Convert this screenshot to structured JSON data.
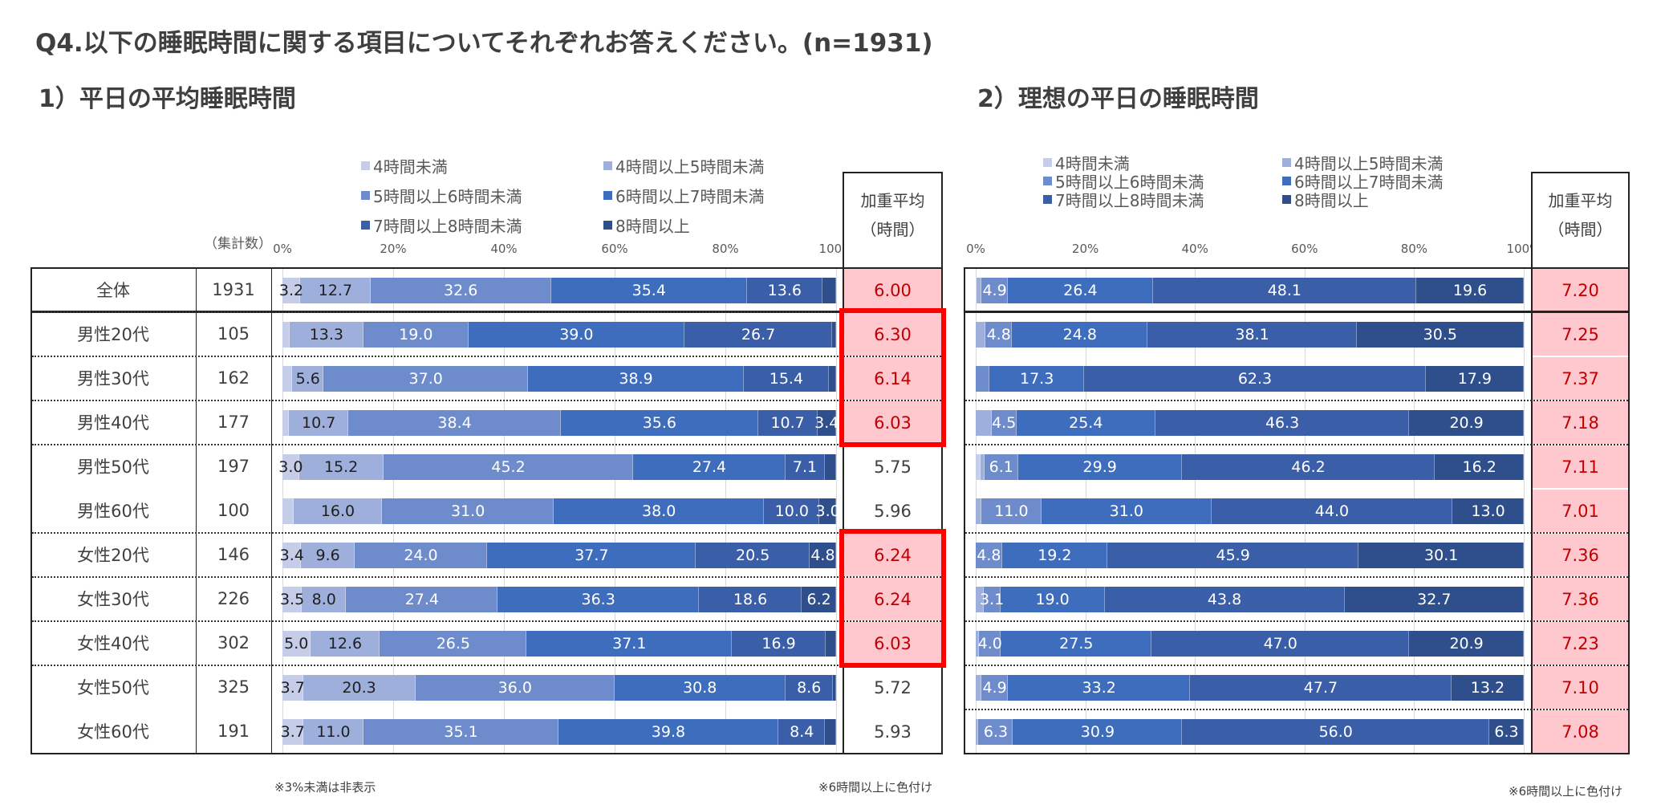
{
  "question_title": "Q4.以下の睡眠時間に関する項目についてそれぞれお答えください。(n=1931)",
  "colors": {
    "series": [
      "#c5cde8",
      "#9fafdc",
      "#6e8ccc",
      "#3f6dbd",
      "#3a5ea8",
      "#2f4f8c"
    ],
    "highlight_bg": "#ffc7ce",
    "highlight_text": "#c00000",
    "highlight_border": "#ff0000"
  },
  "chart_data": [
    {
      "type": "bar",
      "orientation": "horizontal-stacked-100",
      "title": "1）平日の平均睡眠時間",
      "count_header": "（集計数）",
      "weighted_header_line1": "加重平均",
      "weighted_header_line2": "（時間）",
      "x_ticks": [
        "0%",
        "20%",
        "40%",
        "60%",
        "80%",
        "100%"
      ],
      "xlim": [
        0,
        100
      ],
      "grid": true,
      "legend_position": "top",
      "legend": [
        "4時間未満",
        "4時間以上5時間未満",
        "5時間以上6時間未満",
        "6時間以上7時間未満",
        "7時間以上8時間未満",
        "8時間以上"
      ],
      "categories": [
        "全体",
        "男性20代",
        "男性30代",
        "男性40代",
        "男性50代",
        "男性60代",
        "女性20代",
        "女性30代",
        "女性40代",
        "女性50代",
        "女性60代"
      ],
      "counts": [
        "1931",
        "105",
        "162",
        "177",
        "197",
        "100",
        "146",
        "226",
        "302",
        "325",
        "191"
      ],
      "series": [
        {
          "name": "4時間未満",
          "values": [
            3.2,
            1.3,
            1.8,
            1.2,
            3.0,
            2.0,
            3.4,
            3.5,
            5.0,
            3.7,
            3.7
          ]
        },
        {
          "name": "4時間以上5時間未満",
          "values": [
            12.7,
            13.3,
            5.6,
            10.7,
            15.2,
            16.0,
            9.6,
            8.0,
            12.6,
            20.3,
            11.0
          ]
        },
        {
          "name": "5時間以上6時間未満",
          "values": [
            32.6,
            19.0,
            37.0,
            38.4,
            45.2,
            31.0,
            24.0,
            27.4,
            26.5,
            36.0,
            35.1
          ]
        },
        {
          "name": "6時間以上7時間未満",
          "values": [
            35.4,
            39.0,
            38.9,
            35.6,
            27.4,
            38.0,
            37.7,
            36.3,
            37.1,
            30.8,
            39.8
          ]
        },
        {
          "name": "7時間以上8時間未満",
          "values": [
            13.6,
            26.7,
            15.4,
            10.7,
            7.1,
            10.0,
            20.5,
            18.6,
            16.9,
            8.6,
            8.4
          ]
        },
        {
          "name": "8時間以上",
          "values": [
            2.5,
            0.7,
            1.3,
            3.4,
            2.1,
            3.0,
            4.8,
            6.2,
            1.9,
            0.6,
            2.0
          ]
        }
      ],
      "weighted_avg": [
        "6.00",
        "6.30",
        "6.14",
        "6.03",
        "5.75",
        "5.96",
        "6.24",
        "6.24",
        "6.03",
        "5.72",
        "5.93"
      ],
      "highlighted": [
        true,
        true,
        true,
        true,
        false,
        false,
        true,
        true,
        true,
        false,
        false
      ],
      "red_boxed_groups": [
        [
          1,
          3
        ],
        [
          6,
          8
        ]
      ],
      "dotted_separators_after": [
        1,
        2,
        3,
        4,
        6,
        7,
        8,
        9
      ],
      "label_threshold": 3,
      "note_left": "※3%未満は非表示",
      "note_right": "※6時間以上に色付け"
    },
    {
      "type": "bar",
      "orientation": "horizontal-stacked-100",
      "title": "2）理想の平日の睡眠時間",
      "weighted_header_line1": "加重平均",
      "weighted_header_line2": "（時間）",
      "x_ticks": [
        "0%",
        "20%",
        "40%",
        "60%",
        "80%",
        "100%"
      ],
      "xlim": [
        0,
        100
      ],
      "grid": true,
      "legend_position": "top",
      "legend": [
        "4時間未満",
        "4時間以上5時間未満",
        "5時間以上6時間未満",
        "6時間以上7時間未満",
        "7時間以上8時間未満",
        "8時間以上"
      ],
      "categories": [
        "全体",
        "男性20代",
        "男性30代",
        "男性40代",
        "男性50代",
        "男性60代",
        "女性20代",
        "女性30代",
        "女性40代",
        "女性50代",
        "女性60代"
      ],
      "series": [
        {
          "name": "4時間未満",
          "values": [
            0.2,
            0.0,
            0.0,
            0.0,
            0.9,
            0.0,
            0.0,
            0.0,
            0.0,
            0.0,
            0.0
          ]
        },
        {
          "name": "4時間以上5時間未満",
          "values": [
            0.8,
            1.8,
            0.0,
            2.9,
            0.7,
            1.0,
            0.0,
            1.4,
            0.6,
            1.0,
            0.5
          ]
        },
        {
          "name": "5時間以上6時間未満",
          "values": [
            4.9,
            4.8,
            2.5,
            4.5,
            6.1,
            11.0,
            4.8,
            3.1,
            4.0,
            4.9,
            6.3
          ]
        },
        {
          "name": "6時間以上7時間未満",
          "values": [
            26.4,
            24.8,
            17.3,
            25.4,
            29.9,
            31.0,
            19.2,
            19.0,
            27.5,
            33.2,
            30.9
          ]
        },
        {
          "name": "7時間以上8時間未満",
          "values": [
            48.1,
            38.1,
            62.3,
            46.3,
            46.2,
            44.0,
            45.9,
            43.8,
            47.0,
            47.7,
            56.0
          ]
        },
        {
          "name": "8時間以上",
          "values": [
            19.6,
            30.5,
            17.9,
            20.9,
            16.2,
            13.0,
            30.1,
            32.7,
            20.9,
            13.2,
            6.3
          ]
        }
      ],
      "weighted_avg": [
        "7.20",
        "7.25",
        "7.37",
        "7.18",
        "7.11",
        "7.01",
        "7.36",
        "7.36",
        "7.23",
        "7.10",
        "7.08"
      ],
      "highlighted": [
        true,
        true,
        true,
        true,
        true,
        true,
        true,
        true,
        true,
        true,
        true
      ],
      "dotted_separators_after": [
        3,
        4,
        6,
        7,
        8,
        9,
        10
      ],
      "label_threshold": 3,
      "note_right": "※6時間以上に色付け"
    }
  ]
}
